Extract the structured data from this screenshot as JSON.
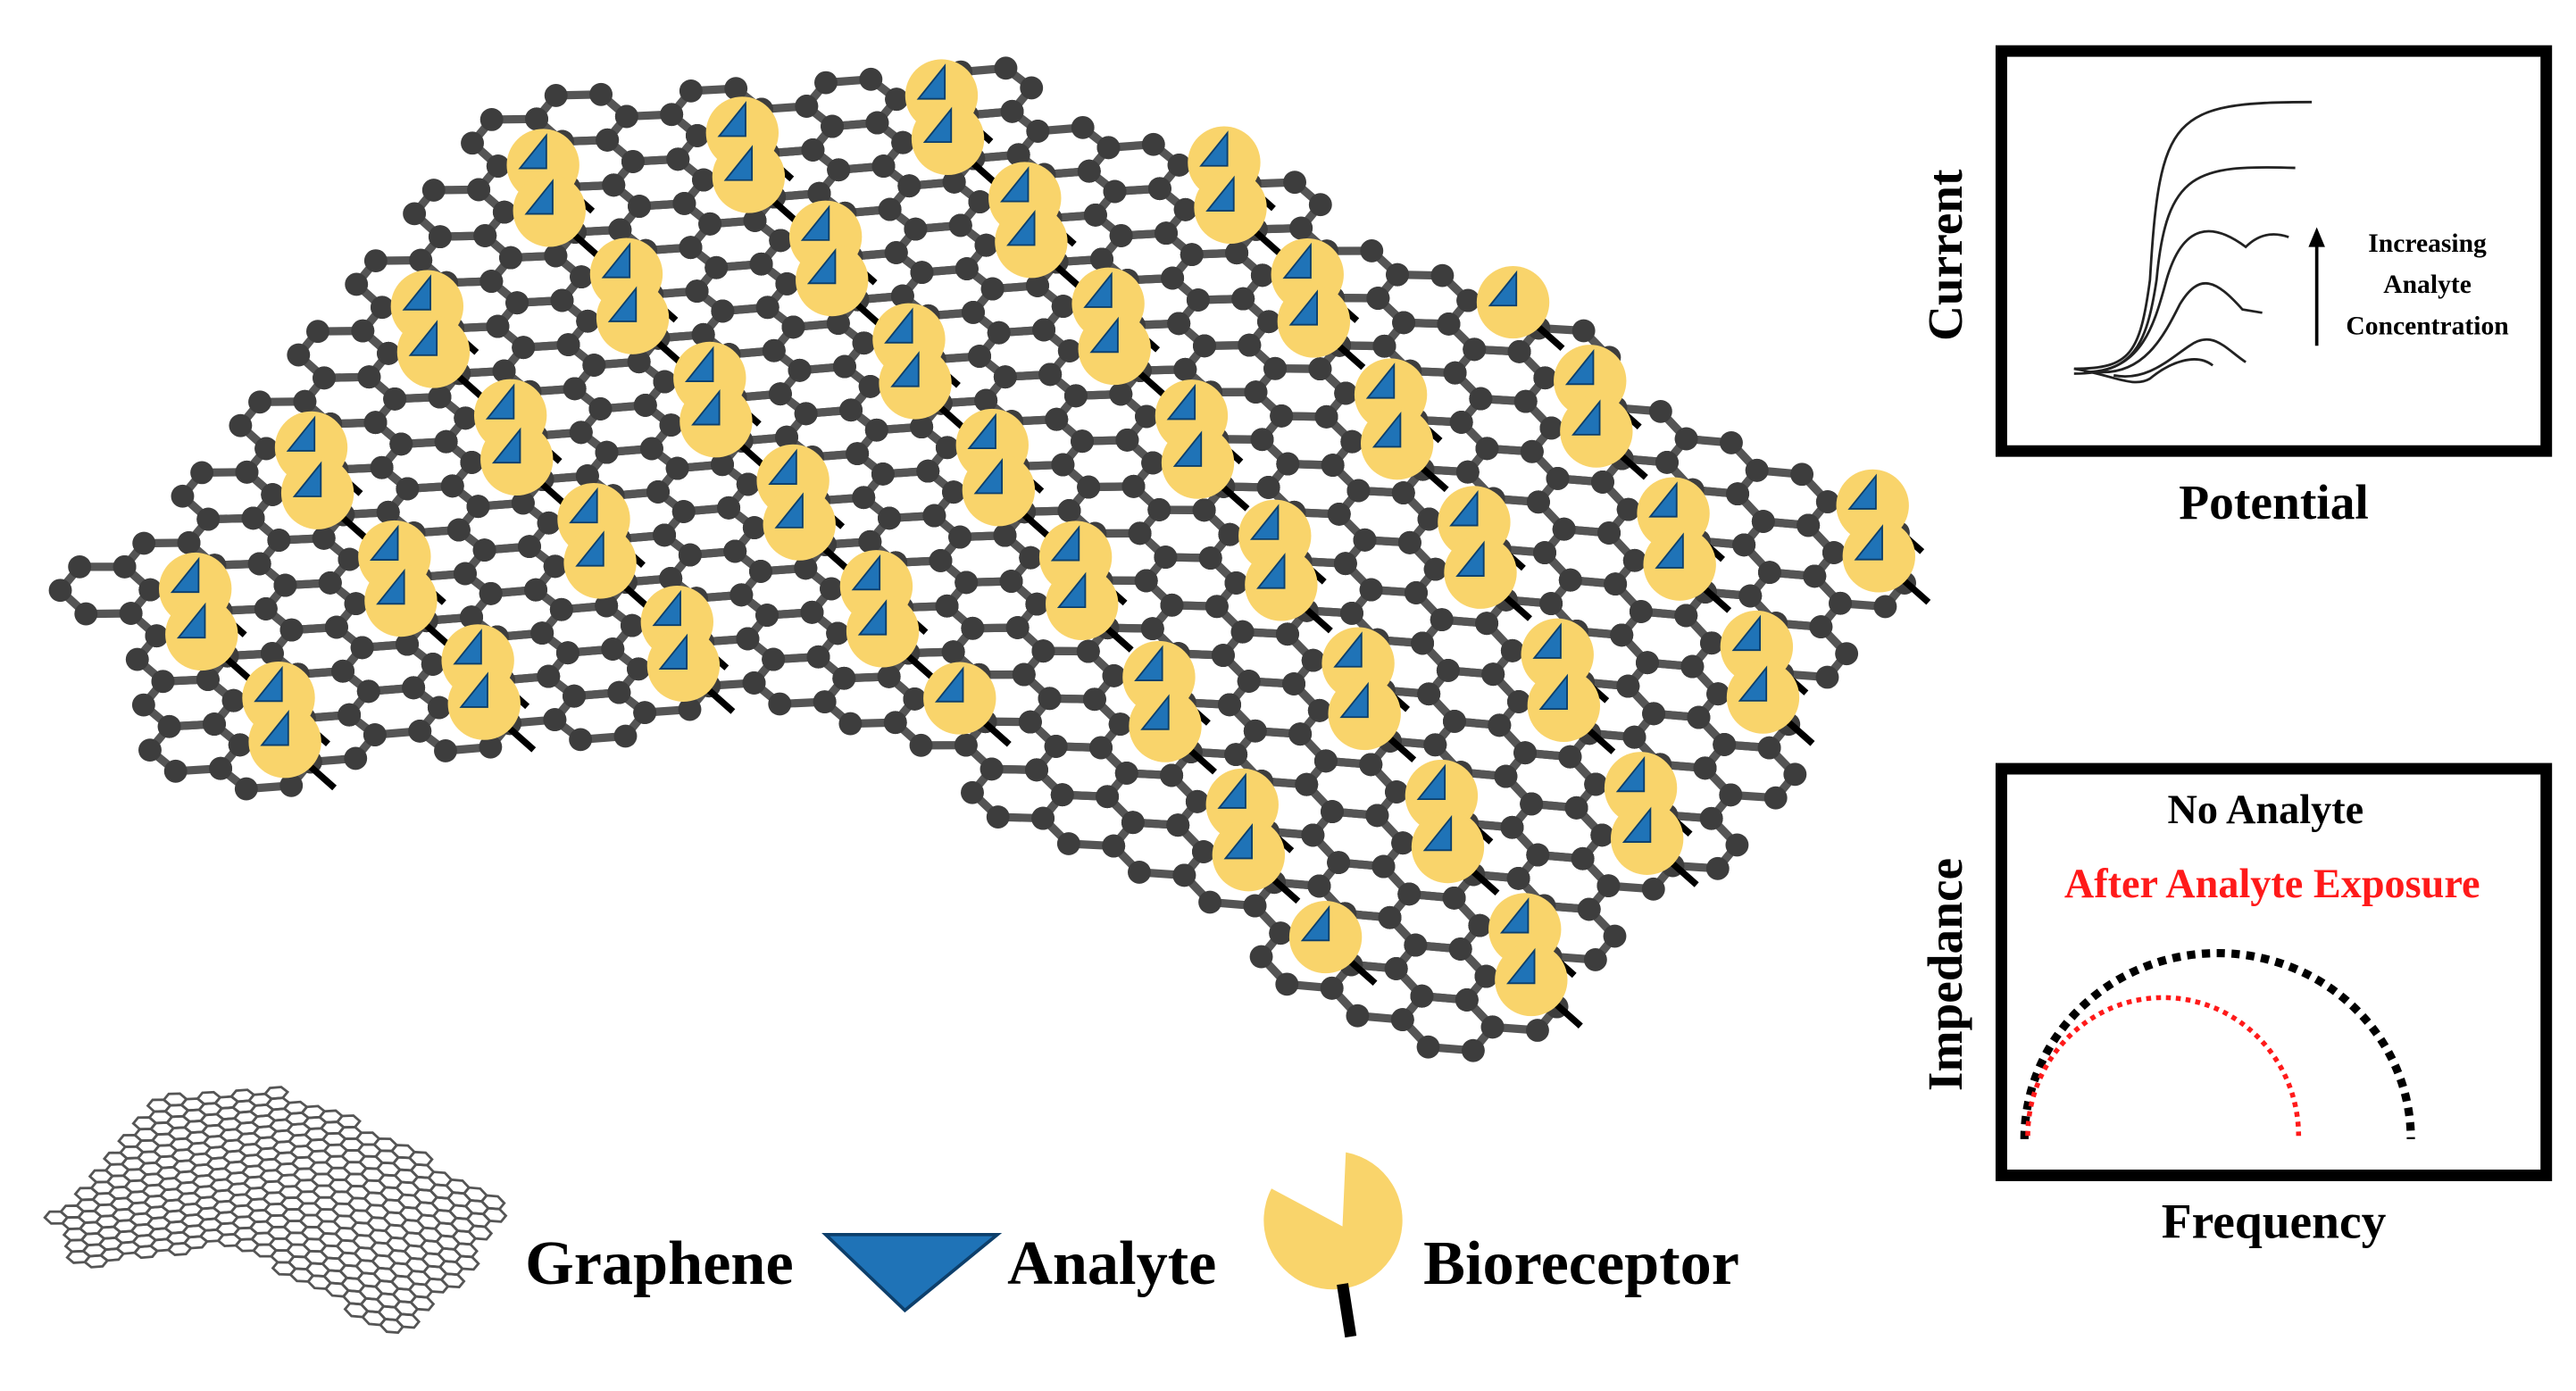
{
  "voltammetry": {
    "y_label": "Current",
    "x_label": "Potential",
    "annotation": [
      "Increasing",
      "Analyte",
      "Concentration"
    ]
  },
  "impedance": {
    "y_label": "Impedance",
    "x_label": "Frequency",
    "legend": [
      "No Analyte",
      "After Analyte Exposure"
    ]
  },
  "legend": [
    "Graphene",
    "Analyte",
    "Bioreceptor"
  ]
}
